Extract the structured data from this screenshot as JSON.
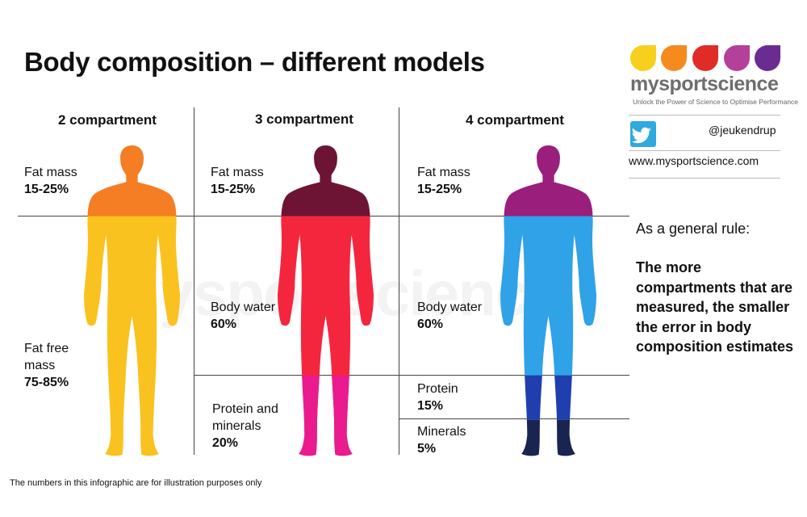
{
  "title": "Body composition – different models",
  "watermark": "mysportscience",
  "footnote": "The numbers in this infographic are for illustration purposes only",
  "columns": [
    {
      "heading": "2 compartment",
      "rows": [
        {
          "name": "Fat mass",
          "value": "15-25%"
        },
        {
          "name": "Fat free mass",
          "value": "75-85%"
        }
      ]
    },
    {
      "heading": "3 compartment",
      "rows": [
        {
          "name": "Fat mass",
          "value": "15-25%"
        },
        {
          "name": "Body water",
          "value": "60%"
        },
        {
          "name": "Protein and minerals",
          "value": "20%"
        }
      ]
    },
    {
      "heading": "4 compartment",
      "rows": [
        {
          "name": "Fat mass",
          "value": "15-25%"
        },
        {
          "name": "Body water",
          "value": "60%"
        },
        {
          "name": "Protein",
          "value": "15%"
        },
        {
          "name": "Minerals",
          "value": "5%"
        }
      ]
    }
  ],
  "brand": {
    "name": "mysportscience",
    "tagline": "Unlock the Power of Science to Optimise Performance",
    "twitter_handle": "@jeukendrup",
    "website": "www.mysportscience.com",
    "logo_colors": [
      "#f7cf1d",
      "#f58b1f",
      "#e02b27",
      "#b5409b",
      "#6b2c91"
    ],
    "twitter_icon": "twitter-bird-icon"
  },
  "rule": {
    "intro": "As a general rule:",
    "text": "The more compartments that are measured, the smaller the error in body composition estimates"
  },
  "colors": {
    "c2_fat": "#f57d23",
    "c2_fatfree": "#f9c21e",
    "c3_fat": "#6d1434",
    "c3_water": "#f4263e",
    "c3_protein_minerals": "#ea1b8e",
    "c4_fat": "#9a1e7c",
    "c4_water": "#2fa2e8",
    "c4_protein": "#1f3fae",
    "c4_minerals": "#1a2450"
  }
}
